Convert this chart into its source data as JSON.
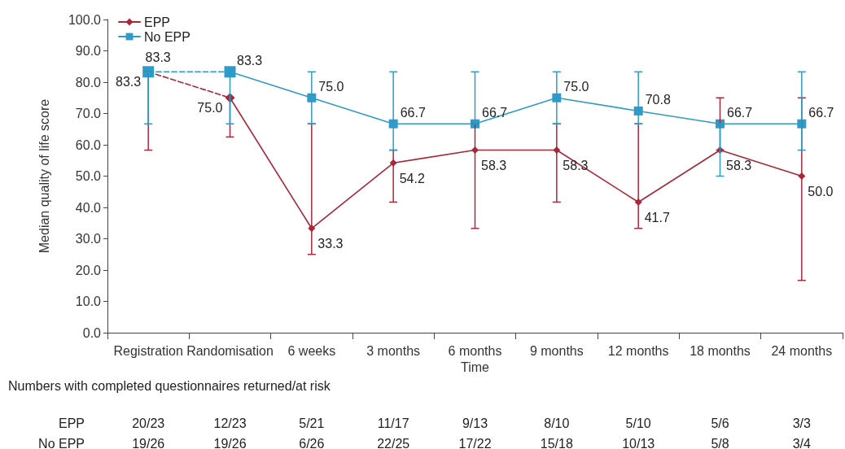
{
  "chart_data": {
    "type": "line",
    "xlabel": "Time",
    "ylabel": "Median quality of life score",
    "categories": [
      "Registration",
      "Randomisation",
      "6 weeks",
      "3 months",
      "6 months",
      "9 months",
      "12 months",
      "18 months",
      "24 months"
    ],
    "series": [
      {
        "name": "EPP",
        "color": "#a8283a",
        "marker": "diamond",
        "line_style": "solid",
        "values": [
          null,
          75.0,
          33.3,
          54.2,
          58.3,
          58.3,
          41.7,
          58.3,
          50.0
        ],
        "value_labels": [
          null,
          null,
          "33.3",
          "54.2",
          "58.3",
          "58.3",
          "41.7",
          "58.3",
          "50.0"
        ],
        "errors": [
          null,
          [
            62.5,
            75.0
          ],
          [
            25.0,
            66.7
          ],
          [
            41.7,
            58.3
          ],
          [
            33.3,
            66.7
          ],
          [
            41.7,
            66.7
          ],
          [
            33.3,
            66.7
          ],
          [
            58.3,
            75.0
          ],
          [
            16.7,
            75.0
          ]
        ]
      },
      {
        "name": "No EPP",
        "color": "#2f9bc9",
        "marker": "square",
        "line_style": "solid",
        "values": [
          null,
          83.3,
          75.0,
          66.7,
          66.7,
          75.0,
          70.8,
          66.7,
          66.7
        ],
        "value_labels": [
          null,
          "83.3",
          "75.0",
          "66.7",
          "66.7",
          "75.0",
          "70.8",
          "66.7",
          "66.7"
        ],
        "errors": [
          null,
          [
            66.7,
            83.3
          ],
          [
            66.7,
            83.3
          ],
          [
            58.3,
            83.3
          ],
          [
            66.7,
            83.3
          ],
          [
            66.7,
            83.3
          ],
          [
            66.7,
            83.3
          ],
          [
            50.0,
            66.7
          ],
          [
            58.3,
            83.3
          ]
        ]
      },
      {
        "color": "#a8283a",
        "marker": "diamond",
        "line_style": "dashed",
        "values": [
          83.3,
          75.0,
          null,
          null,
          null,
          null,
          null,
          null,
          null
        ],
        "value_labels": [
          "83.3",
          "75.0",
          null,
          null,
          null,
          null,
          null,
          null,
          null
        ],
        "errors": [
          [
            58.3,
            83.3
          ],
          null,
          null,
          null,
          null,
          null,
          null,
          null,
          null
        ]
      },
      {
        "color": "#2f9bc9",
        "marker": "square",
        "line_style": "dashed",
        "values": [
          83.3,
          83.3,
          null,
          null,
          null,
          null,
          null,
          null,
          null
        ],
        "value_labels": [
          "83.3",
          null,
          null,
          null,
          null,
          null,
          null,
          null,
          null
        ],
        "errors": [
          [
            66.7,
            83.3
          ],
          null,
          null,
          null,
          null,
          null,
          null,
          null,
          null
        ]
      }
    ],
    "ylim": [
      0,
      100
    ],
    "yticks": [
      {
        "value": 0,
        "label": "0.0"
      },
      {
        "value": 10,
        "label": "10.0"
      },
      {
        "value": 20,
        "label": "20.0"
      },
      {
        "value": 30,
        "label": "30.0"
      },
      {
        "value": 40,
        "label": "40.0"
      },
      {
        "value": 50,
        "label": "50.0"
      },
      {
        "value": 60,
        "label": "60.0"
      },
      {
        "value": 70,
        "label": "70.0"
      },
      {
        "value": 80,
        "label": "80.0"
      },
      {
        "value": 90,
        "label": "90.0"
      },
      {
        "value": 100,
        "label": "100.0"
      }
    ],
    "legend": "top left",
    "annotations": [
      "Numbers with completed questionnaires returned/at risk",
      "EPP",
      "20/23",
      "12/23",
      "5/21",
      "11/17",
      "9/13",
      "8/10",
      "5/10",
      "5/6",
      "3/3",
      "No EPP",
      "19/26",
      "19/26",
      "6/26",
      "22/25",
      "17/22",
      "15/18",
      "10/13",
      "5/8",
      "3/4"
    ]
  }
}
